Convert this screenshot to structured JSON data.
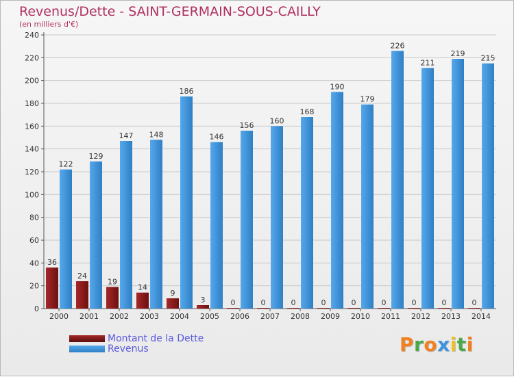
{
  "chart_data": {
    "type": "bar",
    "title": "Revenus/Dette - SAINT-GERMAIN-SOUS-CAILLY",
    "subtitle": "(en milliers d'€)",
    "categories": [
      "2000",
      "2001",
      "2002",
      "2003",
      "2004",
      "2005",
      "2006",
      "2007",
      "2008",
      "2009",
      "2010",
      "2011",
      "2012",
      "2013",
      "2014"
    ],
    "series": [
      {
        "name": "Montant de la Dette",
        "values": [
          36,
          24,
          19,
          14,
          9,
          3,
          0,
          0,
          0,
          0,
          0,
          0,
          0,
          0,
          0
        ],
        "color": "#8b1a1a"
      },
      {
        "name": "Revenus",
        "values": [
          122,
          129,
          147,
          148,
          186,
          146,
          156,
          160,
          168,
          190,
          179,
          226,
          211,
          219,
          215
        ],
        "color": "#3d93dc"
      }
    ],
    "ylim": [
      0,
      240
    ],
    "yticks": [
      0,
      20,
      40,
      60,
      80,
      100,
      120,
      140,
      160,
      180,
      200,
      220,
      240
    ],
    "grid": true,
    "legend_position": "bottom-left"
  },
  "logo": {
    "letters": [
      "P",
      "r",
      "o",
      "x",
      "i",
      "t",
      "i"
    ],
    "colors": [
      "#f08020",
      "#4aa84a",
      "#f08020",
      "#3d93dc",
      "#f0c020",
      "#4aa84a",
      "#f08020"
    ]
  }
}
